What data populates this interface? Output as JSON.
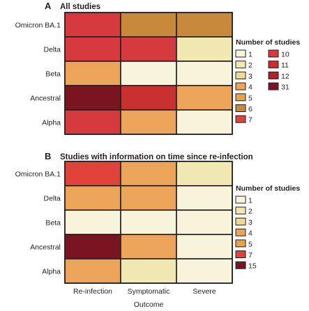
{
  "chart_data": [
    {
      "type": "heatmap",
      "panel": "A",
      "title": "All studies",
      "rows": [
        "Omicron BA.1",
        "Delta",
        "Beta",
        "Ancestral",
        "Alpha"
      ],
      "columns": [
        "Re-infection",
        "Symptomatic",
        "Severe"
      ],
      "values": [
        [
          10,
          6,
          6
        ],
        [
          10,
          10,
          2
        ],
        [
          4,
          1,
          1
        ],
        [
          31,
          11,
          4
        ],
        [
          10,
          4,
          1
        ]
      ],
      "legend": {
        "title": "Number of studies",
        "entries": [
          {
            "value": 1,
            "label": "1",
            "color": "#f8f4dc"
          },
          {
            "value": 2,
            "label": "2",
            "color": "#f2e9b2"
          },
          {
            "value": 3,
            "label": "3",
            "color": "#eed99a"
          },
          {
            "value": 4,
            "label": "4",
            "color": "#eca458"
          },
          {
            "value": 5,
            "label": "5",
            "color": "#e9a348"
          },
          {
            "value": 6,
            "label": "6",
            "color": "#c9893a"
          },
          {
            "value": 7,
            "label": "7",
            "color": "#e0433a"
          },
          {
            "value": 10,
            "label": "10",
            "color": "#d63a3e"
          },
          {
            "value": 11,
            "label": "11",
            "color": "#c7302f"
          },
          {
            "value": 12,
            "label": "12",
            "color": "#a8272d"
          },
          {
            "value": 31,
            "label": "31",
            "color": "#7a1622"
          }
        ]
      }
    },
    {
      "type": "heatmap",
      "panel": "B",
      "title": "Studies with information on time since re-infection",
      "rows": [
        "Omicron BA.1",
        "Delta",
        "Beta",
        "Ancestral",
        "Alpha"
      ],
      "columns": [
        "Re-infection",
        "Symptomatic",
        "Severe"
      ],
      "values": [
        [
          7,
          4,
          2
        ],
        [
          4,
          4,
          1
        ],
        [
          1,
          1,
          1
        ],
        [
          15,
          4,
          1
        ],
        [
          4,
          2,
          1
        ]
      ],
      "xlabel": "Outcome",
      "legend": {
        "title": "Number of studies",
        "entries": [
          {
            "value": 1,
            "label": "1",
            "color": "#f8f4dc"
          },
          {
            "value": 2,
            "label": "2",
            "color": "#f2e9b2"
          },
          {
            "value": 3,
            "label": "3",
            "color": "#eed99a"
          },
          {
            "value": 4,
            "label": "4",
            "color": "#eca458"
          },
          {
            "value": 5,
            "label": "5",
            "color": "#e9a348"
          },
          {
            "value": 7,
            "label": "7",
            "color": "#e0433a"
          },
          {
            "value": 15,
            "label": "15",
            "color": "#7a1622"
          }
        ]
      }
    }
  ]
}
